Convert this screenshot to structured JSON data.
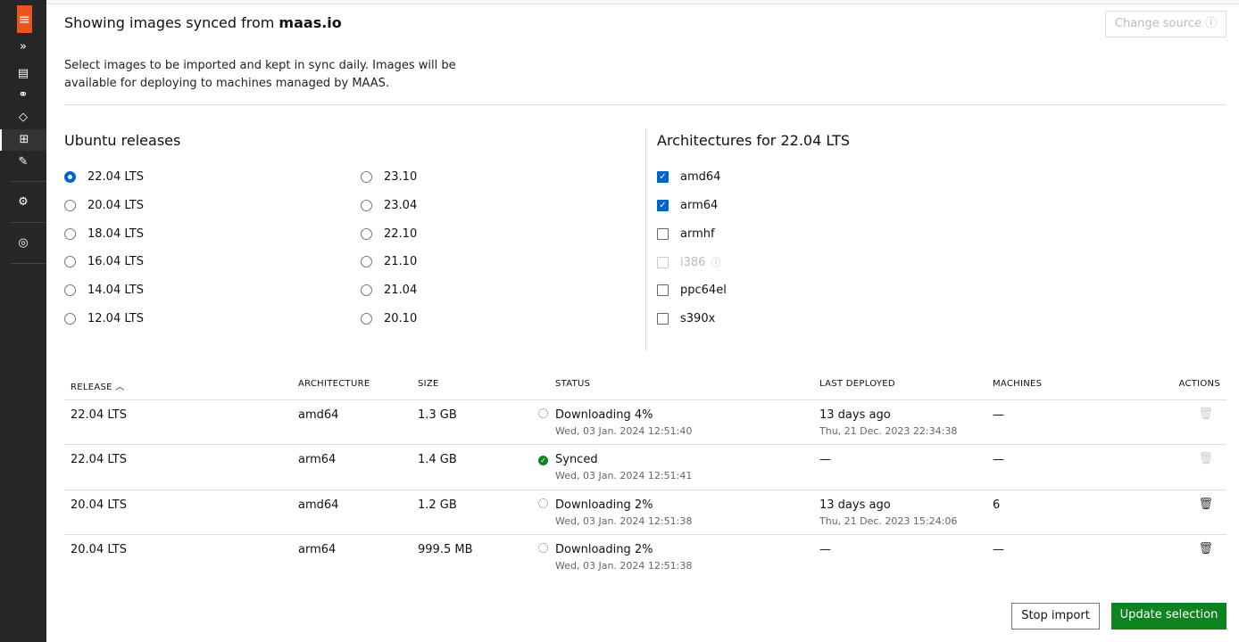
{
  "sidebar": {
    "icons": [
      "menu-icon",
      "expand-icon",
      "machines-icon",
      "pools-icon",
      "tags-icon",
      "images-icon",
      "kvm-icon",
      "settings-icon",
      "user-icon"
    ]
  },
  "header": {
    "title_prefix": "Showing images synced from",
    "title_source": "maas.io",
    "change_source": "Change source",
    "description": "Select images to be imported and kept in sync daily. Images will be available for deploying to machines managed by MAAS."
  },
  "releases": {
    "title": "Ubuntu releases",
    "selected": "22.04 LTS",
    "col1": [
      "22.04 LTS",
      "20.04 LTS",
      "18.04 LTS",
      "16.04 LTS",
      "14.04 LTS",
      "12.04 LTS"
    ],
    "col2": [
      "23.10",
      "23.04",
      "22.10",
      "21.10",
      "21.04",
      "20.10"
    ]
  },
  "arches": {
    "title": "Architectures for 22.04 LTS",
    "items": [
      {
        "label": "amd64",
        "checked": true
      },
      {
        "label": "arm64",
        "checked": true
      },
      {
        "label": "armhf",
        "checked": false
      },
      {
        "label": "i386",
        "checked": false,
        "disabled": true
      },
      {
        "label": "ppc64el",
        "checked": false
      },
      {
        "label": "s390x",
        "checked": false
      }
    ]
  },
  "table": {
    "headers": [
      "RELEASE",
      "ARCHITECTURE",
      "SIZE",
      "STATUS",
      "LAST DEPLOYED",
      "MACHINES",
      "ACTIONS"
    ],
    "rows": [
      {
        "release": "22.04 LTS",
        "arch": "amd64",
        "size": "1.3 GB",
        "status": "Downloading 4%",
        "status_icon": "spinner",
        "status_time": "Wed, 03 Jan. 2024 12:51:40",
        "last": "13 days ago",
        "last_time": "Thu, 21 Dec. 2023 22:34:38",
        "machines": "—",
        "delete_enabled": false
      },
      {
        "release": "22.04 LTS",
        "arch": "arm64",
        "size": "1.4 GB",
        "status": "Synced",
        "status_icon": "success",
        "status_time": "Wed, 03 Jan. 2024 12:51:41",
        "last": "—",
        "last_time": "",
        "machines": "—",
        "delete_enabled": false
      },
      {
        "release": "20.04 LTS",
        "arch": "amd64",
        "size": "1.2 GB",
        "status": "Downloading 2%",
        "status_icon": "spinner",
        "status_time": "Wed, 03 Jan. 2024 12:51:38",
        "last": "13 days ago",
        "last_time": "Thu, 21 Dec. 2023 15:24:06",
        "machines": "6",
        "delete_enabled": true
      },
      {
        "release": "20.04 LTS",
        "arch": "arm64",
        "size": "999.5 MB",
        "status": "Downloading 2%",
        "status_icon": "spinner",
        "status_time": "Wed, 03 Jan. 2024 12:51:38",
        "last": "—",
        "last_time": "",
        "machines": "—",
        "delete_enabled": true
      }
    ]
  },
  "footer": {
    "stop": "Stop import",
    "update": "Update selection"
  },
  "colors": {
    "accent": "#0066cc",
    "brand": "#e95420",
    "success": "#0e8420"
  }
}
